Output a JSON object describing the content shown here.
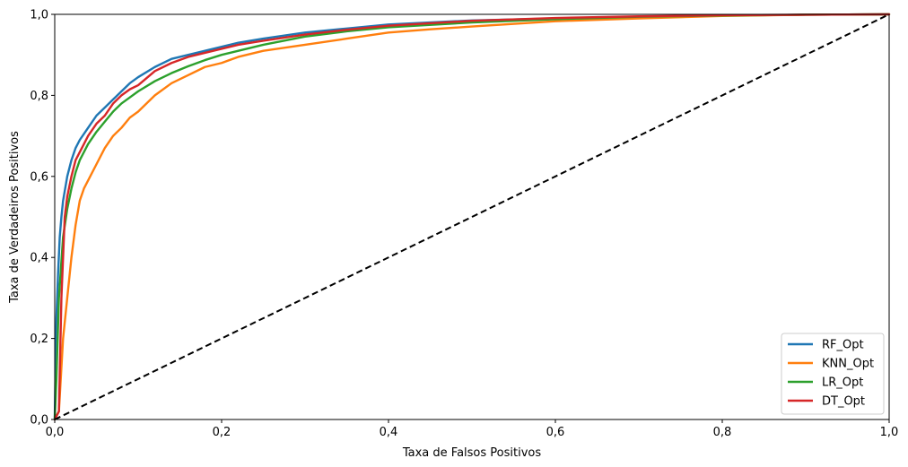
{
  "chart_data": {
    "type": "line",
    "title": "",
    "xlabel": "Taxa de Falsos Positivos",
    "ylabel": "Taxa de Verdadeiros Positivos",
    "xlim": [
      0,
      1
    ],
    "ylim": [
      0,
      1
    ],
    "xticks": [
      "0,0",
      "0,2",
      "0,4",
      "0,6",
      "0,8",
      "1,0"
    ],
    "yticks": [
      "0,0",
      "0,2",
      "0,4",
      "0,6",
      "0,8",
      "1,0"
    ],
    "grid": false,
    "legend_position": "lower-right",
    "series": [
      {
        "name": "RF_Opt",
        "color": "#1f77b4",
        "x": [
          0,
          0.002,
          0.004,
          0.006,
          0.008,
          0.01,
          0.015,
          0.02,
          0.025,
          0.03,
          0.04,
          0.05,
          0.06,
          0.07,
          0.08,
          0.09,
          0.1,
          0.12,
          0.14,
          0.16,
          0.18,
          0.2,
          0.22,
          0.25,
          0.3,
          0.35,
          0.4,
          0.5,
          0.6,
          0.7,
          0.8,
          0.9,
          1.0
        ],
        "y": [
          0,
          0.25,
          0.36,
          0.45,
          0.5,
          0.54,
          0.6,
          0.64,
          0.67,
          0.69,
          0.72,
          0.75,
          0.77,
          0.79,
          0.81,
          0.83,
          0.845,
          0.87,
          0.89,
          0.9,
          0.91,
          0.92,
          0.93,
          0.94,
          0.955,
          0.965,
          0.975,
          0.985,
          0.99,
          0.994,
          0.997,
          0.999,
          1.0
        ]
      },
      {
        "name": "KNN_Opt",
        "color": "#ff7f0e",
        "x": [
          0,
          0.005,
          0.01,
          0.015,
          0.02,
          0.025,
          0.03,
          0.035,
          0.04,
          0.05,
          0.06,
          0.07,
          0.08,
          0.09,
          0.1,
          0.12,
          0.14,
          0.16,
          0.18,
          0.2,
          0.22,
          0.25,
          0.3,
          0.35,
          0.4,
          0.45,
          0.5,
          0.6,
          0.7,
          0.8,
          0.9,
          1.0
        ],
        "y": [
          0,
          0.02,
          0.2,
          0.3,
          0.4,
          0.48,
          0.54,
          0.57,
          0.59,
          0.63,
          0.67,
          0.7,
          0.72,
          0.745,
          0.76,
          0.8,
          0.83,
          0.85,
          0.87,
          0.88,
          0.895,
          0.91,
          0.925,
          0.94,
          0.955,
          0.963,
          0.97,
          0.983,
          0.99,
          0.996,
          0.999,
          1.0
        ]
      },
      {
        "name": "LR_Opt",
        "color": "#2ca02c",
        "x": [
          0,
          0.002,
          0.005,
          0.01,
          0.015,
          0.02,
          0.025,
          0.03,
          0.04,
          0.05,
          0.06,
          0.07,
          0.08,
          0.09,
          0.1,
          0.12,
          0.14,
          0.16,
          0.18,
          0.2,
          0.22,
          0.25,
          0.3,
          0.35,
          0.4,
          0.5,
          0.6,
          0.7,
          0.8,
          0.9,
          1.0
        ],
        "y": [
          0,
          0.1,
          0.3,
          0.45,
          0.52,
          0.57,
          0.61,
          0.64,
          0.68,
          0.71,
          0.735,
          0.76,
          0.78,
          0.795,
          0.81,
          0.835,
          0.855,
          0.872,
          0.887,
          0.9,
          0.91,
          0.925,
          0.945,
          0.958,
          0.968,
          0.98,
          0.988,
          0.994,
          0.997,
          0.999,
          1.0
        ]
      },
      {
        "name": "DT_Opt",
        "color": "#d62728",
        "x": [
          0,
          0.005,
          0.008,
          0.012,
          0.015,
          0.02,
          0.025,
          0.03,
          0.035,
          0.04,
          0.05,
          0.06,
          0.07,
          0.08,
          0.09,
          0.1,
          0.12,
          0.14,
          0.16,
          0.18,
          0.2,
          0.22,
          0.25,
          0.3,
          0.35,
          0.4,
          0.5,
          0.6,
          0.7,
          0.8,
          0.9,
          1.0
        ],
        "y": [
          0,
          0.02,
          0.3,
          0.5,
          0.55,
          0.6,
          0.64,
          0.66,
          0.68,
          0.7,
          0.73,
          0.75,
          0.78,
          0.8,
          0.815,
          0.825,
          0.86,
          0.88,
          0.895,
          0.905,
          0.915,
          0.925,
          0.935,
          0.95,
          0.962,
          0.972,
          0.984,
          0.991,
          0.995,
          0.998,
          0.999,
          1.0
        ]
      },
      {
        "name": "",
        "color": "#000000",
        "dashed": true,
        "x": [
          0,
          1
        ],
        "y": [
          0,
          1
        ]
      }
    ]
  }
}
